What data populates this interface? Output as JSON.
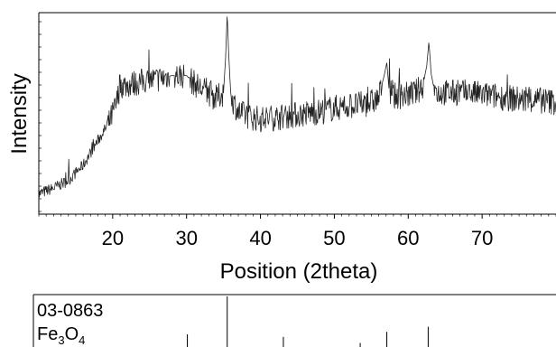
{
  "chart_data": [
    {
      "type": "line",
      "title": "",
      "xlabel": "Position (2theta)",
      "ylabel": "Intensity",
      "xlim": [
        10,
        80
      ],
      "ylim": [
        0,
        100
      ],
      "x_ticks": [
        20,
        30,
        40,
        50,
        60,
        70
      ],
      "x_tick_labels": [
        "20",
        "30",
        "40",
        "50",
        "60",
        "70"
      ],
      "grid": false,
      "series": [
        {
          "name": "",
          "color": "#222222",
          "x": [
            10,
            12,
            14,
            16,
            18,
            19.5,
            20.5,
            21,
            22,
            24,
            26,
            28,
            30,
            31,
            32,
            33,
            34,
            35,
            35.3,
            35.5,
            35.7,
            36,
            37,
            38,
            40,
            42,
            44,
            46,
            48,
            50,
            52,
            54,
            55,
            56,
            56.8,
            57.1,
            57.4,
            58,
            60,
            61,
            62,
            62.5,
            62.8,
            63.1,
            63.5,
            64,
            66,
            68,
            70,
            72,
            74,
            76,
            78,
            80
          ],
          "y": [
            5,
            8,
            12,
            20,
            33,
            42,
            52,
            62,
            62,
            64,
            65,
            67,
            67,
            63,
            60,
            58,
            55,
            58,
            78,
            100,
            78,
            56,
            48,
            46,
            44,
            45,
            46,
            47,
            48,
            50,
            51,
            52,
            53,
            55,
            68,
            74,
            60,
            56,
            57,
            58,
            62,
            72,
            85,
            68,
            60,
            58,
            58,
            58,
            57,
            56,
            55,
            54,
            54,
            53
          ]
        }
      ]
    },
    {
      "type": "bar",
      "title": "",
      "reference_card": "03-0863",
      "compound": {
        "base": "Fe",
        "sub1": "3",
        "mid": "O",
        "sub2": "4"
      },
      "xlim": [
        10,
        80
      ],
      "ylim": [
        0,
        100
      ],
      "categories": [
        30.1,
        35.5,
        43.1,
        53.5,
        57.1,
        62.7
      ],
      "values": [
        25,
        100,
        20,
        8,
        30,
        40
      ]
    }
  ]
}
